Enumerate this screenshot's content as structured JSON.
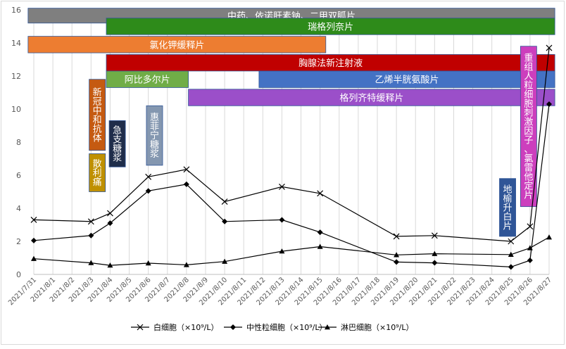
{
  "chart_data": {
    "type": "line",
    "categories": [
      "2021/7/31",
      "2021/8/1",
      "2021/8/2",
      "2021/8/3",
      "2021/8/4",
      "2021/8/5",
      "2021/8/6",
      "2021/8/7",
      "2021/8/8",
      "2021/8/9",
      "2021/8/10",
      "2021/8/11",
      "2021/8/12",
      "2021/8/13",
      "2021/8/14",
      "2021/8/15",
      "2021/8/16",
      "2021/8/17",
      "2021/8/18",
      "2021/8/19",
      "2021/8/20",
      "2021/8/21",
      "2021/8/22",
      "2021/8/23",
      "2021/8/24",
      "2021/8/25",
      "2021/8/26",
      "2021/8/27"
    ],
    "ylim": [
      0,
      16
    ],
    "yticks": [
      0,
      2,
      4,
      6,
      8,
      10,
      12,
      14,
      16
    ],
    "grid": "vertical",
    "legend_position": "bottom",
    "series": [
      {
        "name": "白细胞（×10⁹/L）",
        "marker": "x",
        "points": [
          [
            0,
            3.3
          ],
          [
            3,
            3.2
          ],
          [
            4,
            3.7
          ],
          [
            6,
            5.9
          ],
          [
            8,
            6.35
          ],
          [
            10,
            4.4
          ],
          [
            13,
            5.3
          ],
          [
            15,
            4.9
          ],
          [
            19,
            2.3
          ],
          [
            21,
            2.35
          ],
          [
            25,
            2.0
          ],
          [
            26,
            2.9
          ],
          [
            27,
            13.7
          ]
        ]
      },
      {
        "name": "中性粒细胞（×10⁹/L）",
        "marker": "diamond",
        "points": [
          [
            0,
            2.05
          ],
          [
            3,
            2.35
          ],
          [
            4,
            3.1
          ],
          [
            6,
            5.05
          ],
          [
            8,
            5.45
          ],
          [
            10,
            3.2
          ],
          [
            13,
            3.3
          ],
          [
            15,
            2.55
          ],
          [
            19,
            0.75
          ],
          [
            21,
            0.7
          ],
          [
            25,
            0.45
          ],
          [
            26,
            0.85
          ],
          [
            27,
            10.3
          ]
        ]
      },
      {
        "name": "淋巴细胞（×10⁹/L）",
        "marker": "triangle",
        "points": [
          [
            0,
            0.95
          ],
          [
            3,
            0.7
          ],
          [
            4,
            0.55
          ],
          [
            6,
            0.68
          ],
          [
            8,
            0.58
          ],
          [
            10,
            0.78
          ],
          [
            13,
            1.4
          ],
          [
            15,
            1.68
          ],
          [
            19,
            1.18
          ],
          [
            21,
            1.25
          ],
          [
            25,
            1.2
          ],
          [
            26,
            1.6
          ],
          [
            27,
            2.25
          ]
        ]
      }
    ],
    "annotations": [
      {
        "label": "中药、依诺肝素钠、二甲双胍片",
        "orientation": "horizontal",
        "x_start": -0.3,
        "x_end": 27.3,
        "y_bottom": 15.2,
        "y_top": 16.1,
        "fill": "#7f7f7f",
        "text_color": "#ffffff"
      },
      {
        "label": "瑞格列奈片",
        "orientation": "horizontal",
        "x_start": 3.8,
        "x_end": 27.3,
        "y_bottom": 14.5,
        "y_top": 15.5,
        "fill": "#2e8b1a",
        "text_color": "#ffffff"
      },
      {
        "label": "氯化钾缓释片",
        "orientation": "horizontal",
        "x_start": -0.3,
        "x_end": 15.3,
        "y_bottom": 13.4,
        "y_top": 14.4,
        "fill": "#ed7d31",
        "text_color": "#ffffff"
      },
      {
        "label": "胸腺法新注射液",
        "orientation": "horizontal",
        "x_start": 3.8,
        "x_end": 27.3,
        "y_bottom": 12.3,
        "y_top": 13.3,
        "fill": "#c00000",
        "text_color": "#ffffff"
      },
      {
        "label": "阿比多尔片",
        "orientation": "horizontal",
        "x_start": 3.8,
        "x_end": 8.1,
        "y_bottom": 11.3,
        "y_top": 12.3,
        "fill": "#70ad47",
        "text_color": "#ffffff"
      },
      {
        "label": "乙烯半胱氨酸片",
        "orientation": "horizontal",
        "x_start": 11.8,
        "x_end": 27.3,
        "y_bottom": 11.3,
        "y_top": 12.3,
        "fill": "#4472c4",
        "text_color": "#ffffff"
      },
      {
        "label": "格列齐特缓释片",
        "orientation": "horizontal",
        "x_start": 8.1,
        "x_end": 27.3,
        "y_bottom": 10.2,
        "y_top": 11.2,
        "fill": "#9b4fc9",
        "text_color": "#ffffff"
      },
      {
        "label": "新冠中和抗体",
        "orientation": "vertical",
        "x_start": 2.9,
        "x_end": 3.75,
        "y_bottom": 7.5,
        "y_top": 11.8,
        "fill": "#c55a11",
        "text_color": "#ffffff"
      },
      {
        "label": "散利痛",
        "orientation": "vertical",
        "x_start": 2.9,
        "x_end": 3.75,
        "y_bottom": 5.0,
        "y_top": 7.3,
        "fill": "#bf9000",
        "text_color": "#ffffff"
      },
      {
        "label": "急支糖浆",
        "orientation": "vertical",
        "x_start": 3.95,
        "x_end": 4.8,
        "y_bottom": 6.5,
        "y_top": 9.3,
        "fill": "#1f2d4a",
        "text_color": "#ffffff"
      },
      {
        "label": "惠菲宁糖浆",
        "orientation": "vertical",
        "x_start": 5.9,
        "x_end": 6.75,
        "y_bottom": 6.6,
        "y_top": 10.2,
        "fill": "#8497b0",
        "text_color": "#ffffff"
      },
      {
        "label": "地榆升白片",
        "orientation": "vertical",
        "x_start": 24.4,
        "x_end": 25.25,
        "y_bottom": 2.3,
        "y_top": 5.8,
        "fill": "#2f5597",
        "text_color": "#ffffff"
      },
      {
        "label": "重组人粒细胞刺激因子、氯雷他定片",
        "orientation": "vertical",
        "x_start": 25.5,
        "x_end": 26.35,
        "y_bottom": 4.1,
        "y_top": 13.8,
        "fill": "#cc3fbd",
        "text_color": "#ffffff"
      }
    ]
  }
}
